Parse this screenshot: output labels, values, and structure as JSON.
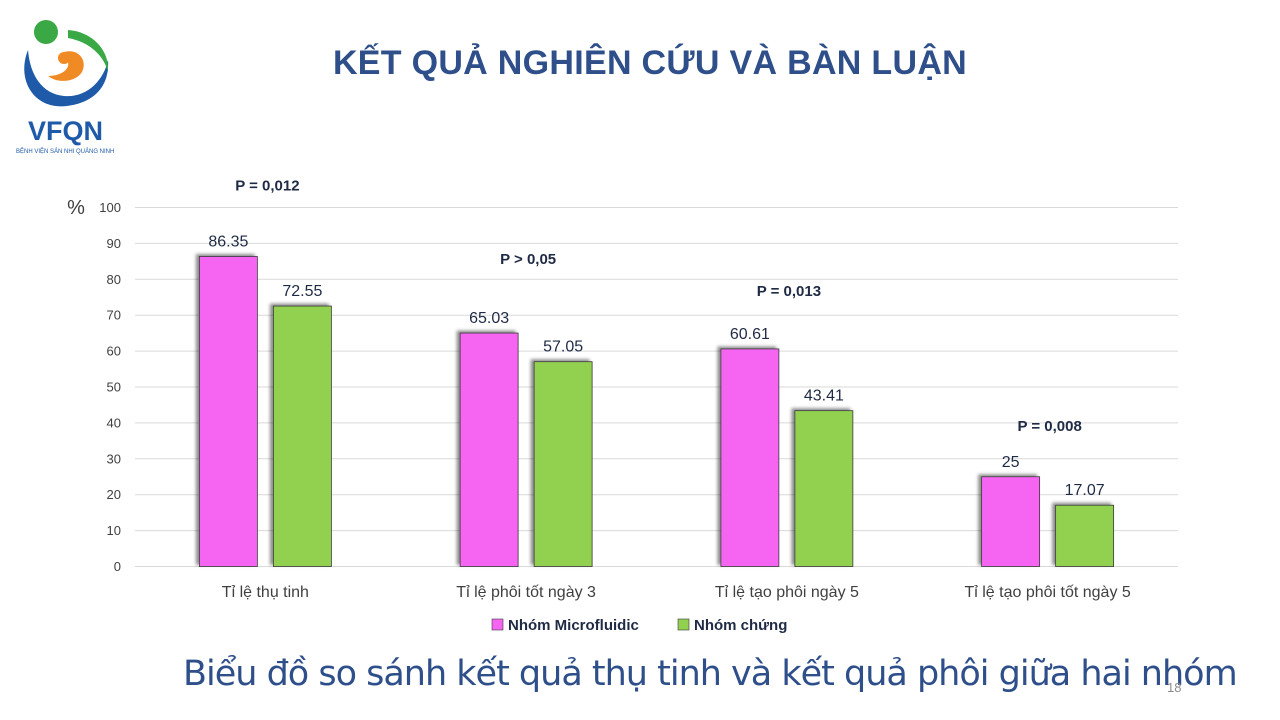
{
  "header": {
    "title": "KẾT QUẢ NGHIÊN CỨU VÀ BÀN LUẬN",
    "logo_text": "VFQN",
    "logo_subtext": "BỆNH VIỆN SẢN NHI QUẢNG NINH"
  },
  "chart_data": {
    "type": "bar",
    "ylabel": "%",
    "ylim": [
      0,
      100
    ],
    "yticks": [
      0,
      10,
      20,
      30,
      40,
      50,
      60,
      70,
      80,
      90,
      100
    ],
    "grid": true,
    "legend_position": "bottom",
    "categories": [
      "Tỉ lệ thụ tinh",
      "Tỉ lệ phôi tốt ngày 3",
      "Tỉ lệ tạo phôi ngày 5",
      "Tỉ lệ tạo phôi tốt ngày 5"
    ],
    "series": [
      {
        "name": "Nhóm Microfluidic",
        "color": "#f665f2",
        "values": [
          86.35,
          65.03,
          60.61,
          25
        ],
        "labels": [
          "86.35",
          "65.03",
          "60.61",
          "25"
        ]
      },
      {
        "name": "Nhóm chứng",
        "color": "#92d050",
        "values": [
          72.55,
          57.05,
          43.41,
          17.07
        ],
        "labels": [
          "72.55",
          "57.05",
          "43.41",
          "17.07"
        ]
      }
    ],
    "annotations": [
      {
        "text": "P = 0,012",
        "category": 0,
        "y": 104.8
      },
      {
        "text": "P > 0,05",
        "category": 1,
        "y": 84.3
      },
      {
        "text": "P = 0,013",
        "category": 2,
        "y": 75.3
      },
      {
        "text": "P = 0,008",
        "category": 3,
        "y": 37.8
      }
    ]
  },
  "caption": "Biểu đồ so sánh kết quả thụ tinh và kết quả phôi giữa hai nhóm",
  "page_number": "18"
}
